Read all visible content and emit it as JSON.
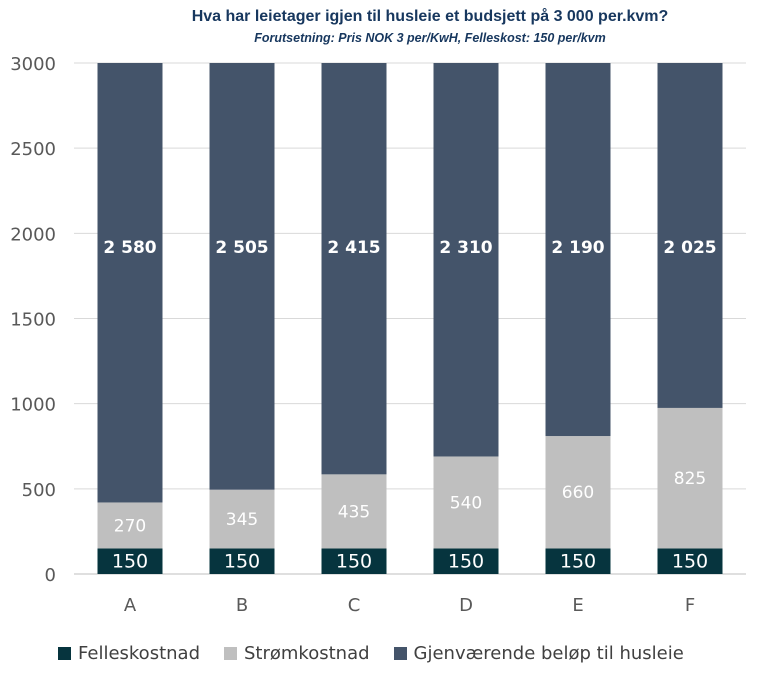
{
  "chart_data": {
    "type": "bar",
    "stacked": true,
    "title": "Hva har leietager igjen til husleie et budsjett på 3 000 per.kvm?",
    "subtitle": "Forutsetning: Pris NOK 3 per/KwH, Felleskost: 150 per/kvm",
    "categories": [
      "A",
      "B",
      "C",
      "D",
      "E",
      "F"
    ],
    "series": [
      {
        "name": "Felleskostnad",
        "color": "#06343e",
        "label_color": "#ffffff",
        "values": [
          150,
          150,
          150,
          150,
          150,
          150
        ],
        "labels": [
          "150",
          "150",
          "150",
          "150",
          "150",
          "150"
        ]
      },
      {
        "name": "Strømkostnad",
        "color": "#bfbfbf",
        "label_color": "#ffffff",
        "values": [
          270,
          345,
          435,
          540,
          660,
          825
        ],
        "labels": [
          "270",
          "345",
          "435",
          "540",
          "660",
          "825"
        ]
      },
      {
        "name": "Gjenværende beløp til husleie",
        "color": "#44546a",
        "label_color": "#ffffff",
        "values": [
          2580,
          2505,
          2415,
          2310,
          2190,
          2025
        ],
        "labels": [
          "2 580",
          "2 505",
          "2 415",
          "2 310",
          "2 190",
          "2 025"
        ]
      }
    ],
    "ylim": [
      0,
      3000
    ],
    "yticks": [
      0,
      500,
      1000,
      1500,
      2000,
      2500,
      3000
    ],
    "ytick_labels": [
      "0",
      "500",
      "1000",
      "1500",
      "2000",
      "2500",
      "3000"
    ],
    "grid": true,
    "legend_position": "bottom",
    "xlabel": "",
    "ylabel": ""
  }
}
